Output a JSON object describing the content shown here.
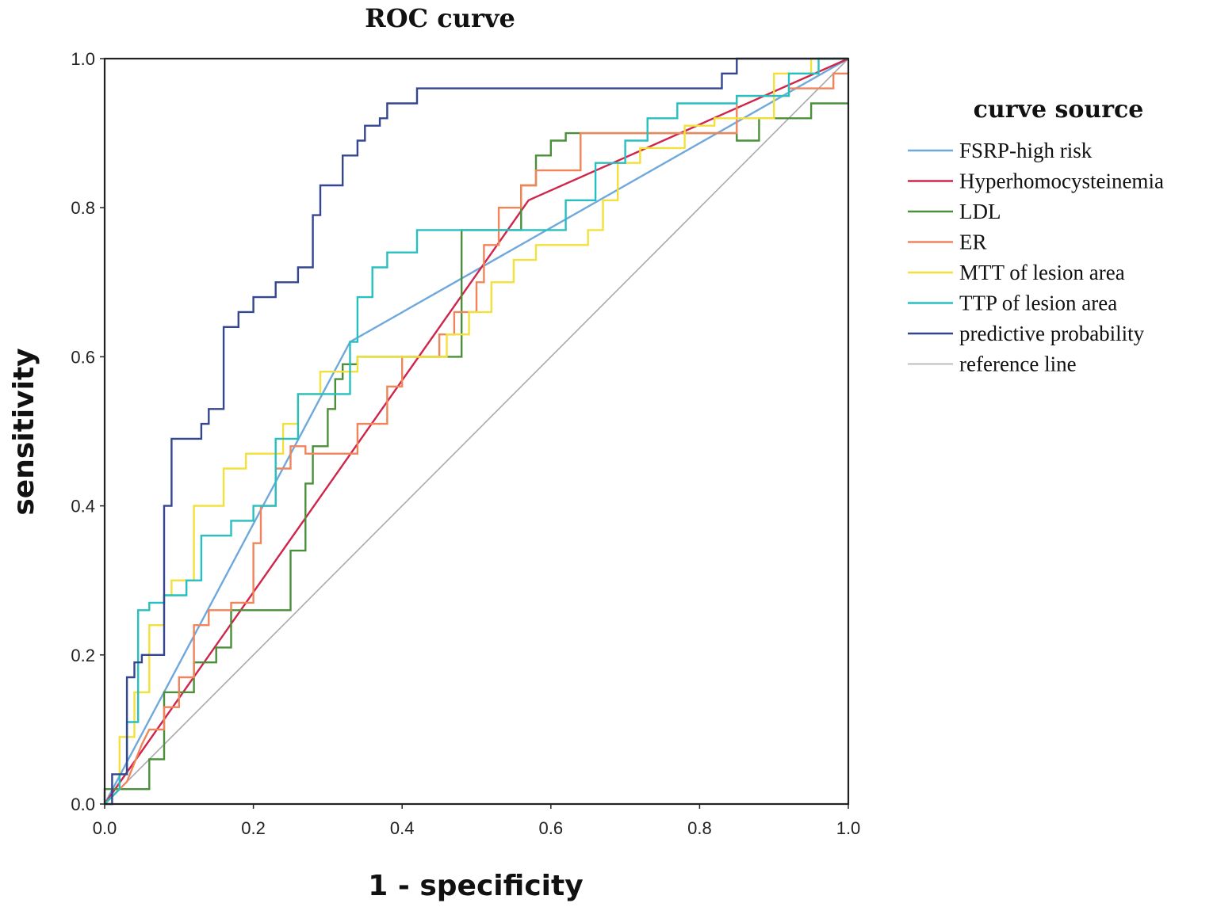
{
  "chart_data": {
    "type": "line",
    "title": "ROC curve",
    "xlabel": "1 - specificity",
    "ylabel": "sensitivity",
    "xlim": [
      0,
      1
    ],
    "ylim": [
      0,
      1
    ],
    "xticks": [
      "0.0",
      "0.2",
      "0.4",
      "0.6",
      "0.8",
      "1.0"
    ],
    "yticks": [
      "0.0",
      "0.2",
      "0.4",
      "0.6",
      "0.8",
      "1.0"
    ],
    "legend_title": "curve source",
    "legend_position": "right",
    "grid": false,
    "series": [
      {
        "name": "FSRP-high risk",
        "color": "#6fa8dc",
        "x": [
          0,
          0.33,
          1
        ],
        "y": [
          0,
          0.62,
          1
        ]
      },
      {
        "name": "Hyperhomocysteinemia",
        "color": "#d0254b",
        "x": [
          0,
          0.57,
          1
        ],
        "y": [
          0,
          0.81,
          1
        ]
      },
      {
        "name": "LDL",
        "color": "#4a8f3a",
        "x": [
          0,
          0,
          0.06,
          0.06,
          0.08,
          0.08,
          0.12,
          0.12,
          0.15,
          0.15,
          0.17,
          0.17,
          0.25,
          0.25,
          0.27,
          0.27,
          0.28,
          0.28,
          0.3,
          0.3,
          0.31,
          0.31,
          0.32,
          0.32,
          0.34,
          0.34,
          0.48,
          0.48,
          0.56,
          0.56,
          0.58,
          0.58,
          0.6,
          0.6,
          0.62,
          0.62,
          0.85,
          0.85,
          0.88,
          0.88,
          0.93,
          0.93,
          0.95,
          0.95,
          1.0
        ],
        "y": [
          0,
          0.02,
          0.02,
          0.06,
          0.06,
          0.15,
          0.15,
          0.19,
          0.19,
          0.21,
          0.21,
          0.26,
          0.26,
          0.34,
          0.34,
          0.43,
          0.43,
          0.48,
          0.48,
          0.53,
          0.53,
          0.57,
          0.57,
          0.59,
          0.59,
          0.6,
          0.6,
          0.77,
          0.77,
          0.83,
          0.83,
          0.87,
          0.87,
          0.89,
          0.89,
          0.9,
          0.9,
          0.89,
          0.89,
          0.92,
          0.92,
          0.92,
          0.92,
          0.94,
          0.94
        ]
      },
      {
        "name": "ER",
        "color": "#f0845a",
        "x": [
          0,
          0.03,
          0.05,
          0.06,
          0.08,
          0.08,
          0.1,
          0.1,
          0.12,
          0.12,
          0.14,
          0.14,
          0.17,
          0.17,
          0.2,
          0.2,
          0.21,
          0.21,
          0.23,
          0.23,
          0.25,
          0.25,
          0.27,
          0.27,
          0.34,
          0.34,
          0.38,
          0.38,
          0.4,
          0.4,
          0.45,
          0.45,
          0.47,
          0.47,
          0.5,
          0.5,
          0.51,
          0.51,
          0.53,
          0.53,
          0.56,
          0.56,
          0.58,
          0.58,
          0.64,
          0.64,
          0.7,
          0.7,
          0.85,
          0.85,
          0.92,
          0.92,
          0.98,
          0.98,
          1.0
        ],
        "y": [
          0,
          0.03,
          0.08,
          0.1,
          0.1,
          0.13,
          0.13,
          0.17,
          0.17,
          0.24,
          0.24,
          0.26,
          0.26,
          0.27,
          0.27,
          0.35,
          0.35,
          0.4,
          0.4,
          0.45,
          0.45,
          0.48,
          0.48,
          0.47,
          0.47,
          0.51,
          0.51,
          0.56,
          0.56,
          0.6,
          0.6,
          0.63,
          0.63,
          0.66,
          0.66,
          0.7,
          0.7,
          0.75,
          0.75,
          0.8,
          0.8,
          0.83,
          0.83,
          0.85,
          0.85,
          0.9,
          0.9,
          0.9,
          0.9,
          0.95,
          0.95,
          0.96,
          0.96,
          0.98,
          0.98
        ]
      },
      {
        "name": "MTT of lesion area",
        "color": "#f3e03a",
        "x": [
          0,
          0.02,
          0.02,
          0.04,
          0.04,
          0.06,
          0.06,
          0.08,
          0.08,
          0.09,
          0.09,
          0.12,
          0.12,
          0.16,
          0.16,
          0.19,
          0.19,
          0.24,
          0.24,
          0.26,
          0.26,
          0.29,
          0.29,
          0.34,
          0.34,
          0.46,
          0.46,
          0.49,
          0.49,
          0.52,
          0.52,
          0.55,
          0.55,
          0.58,
          0.58,
          0.65,
          0.65,
          0.67,
          0.67,
          0.69,
          0.69,
          0.72,
          0.72,
          0.78,
          0.78,
          0.82,
          0.82,
          0.9,
          0.9,
          0.95,
          0.95,
          1.0
        ],
        "y": [
          0,
          0.02,
          0.09,
          0.09,
          0.15,
          0.15,
          0.24,
          0.24,
          0.28,
          0.28,
          0.3,
          0.3,
          0.4,
          0.4,
          0.45,
          0.45,
          0.47,
          0.47,
          0.51,
          0.51,
          0.55,
          0.55,
          0.58,
          0.58,
          0.6,
          0.6,
          0.63,
          0.63,
          0.66,
          0.66,
          0.7,
          0.7,
          0.73,
          0.73,
          0.75,
          0.75,
          0.77,
          0.77,
          0.81,
          0.81,
          0.86,
          0.86,
          0.88,
          0.88,
          0.91,
          0.91,
          0.92,
          0.92,
          0.98,
          0.98,
          1.0,
          1.0
        ]
      },
      {
        "name": "TTP of lesion area",
        "color": "#27c0c0",
        "x": [
          0,
          0.02,
          0.02,
          0.03,
          0.03,
          0.045,
          0.045,
          0.06,
          0.06,
          0.08,
          0.08,
          0.11,
          0.11,
          0.13,
          0.13,
          0.17,
          0.17,
          0.2,
          0.2,
          0.23,
          0.23,
          0.26,
          0.26,
          0.33,
          0.33,
          0.34,
          0.34,
          0.36,
          0.36,
          0.38,
          0.38,
          0.42,
          0.42,
          0.44,
          0.44,
          0.62,
          0.62,
          0.66,
          0.66,
          0.7,
          0.7,
          0.73,
          0.73,
          0.77,
          0.77,
          0.85,
          0.85,
          0.92,
          0.92,
          0.96,
          0.96,
          1.0
        ],
        "y": [
          0,
          0.02,
          0.04,
          0.04,
          0.11,
          0.11,
          0.26,
          0.26,
          0.27,
          0.27,
          0.28,
          0.28,
          0.3,
          0.3,
          0.36,
          0.36,
          0.38,
          0.38,
          0.4,
          0.4,
          0.49,
          0.49,
          0.55,
          0.55,
          0.62,
          0.62,
          0.68,
          0.68,
          0.72,
          0.72,
          0.74,
          0.74,
          0.77,
          0.77,
          0.77,
          0.77,
          0.81,
          0.81,
          0.86,
          0.86,
          0.89,
          0.89,
          0.92,
          0.92,
          0.94,
          0.94,
          0.95,
          0.95,
          0.98,
          0.98,
          1.0,
          1.0
        ]
      },
      {
        "name": "predictive probability",
        "color": "#34468f",
        "x": [
          0,
          0.01,
          0.01,
          0.03,
          0.03,
          0.04,
          0.04,
          0.05,
          0.05,
          0.08,
          0.08,
          0.09,
          0.09,
          0.13,
          0.13,
          0.14,
          0.14,
          0.16,
          0.16,
          0.18,
          0.18,
          0.2,
          0.2,
          0.23,
          0.23,
          0.26,
          0.26,
          0.28,
          0.28,
          0.29,
          0.29,
          0.32,
          0.32,
          0.34,
          0.34,
          0.35,
          0.35,
          0.37,
          0.37,
          0.38,
          0.38,
          0.4,
          0.4,
          0.42,
          0.42,
          0.83,
          0.83,
          0.85,
          0.85,
          0.9,
          0.9,
          0.92,
          0.92,
          1.0
        ],
        "y": [
          0,
          0,
          0.04,
          0.04,
          0.17,
          0.17,
          0.19,
          0.19,
          0.2,
          0.2,
          0.4,
          0.4,
          0.49,
          0.49,
          0.51,
          0.51,
          0.53,
          0.53,
          0.64,
          0.64,
          0.66,
          0.66,
          0.68,
          0.68,
          0.7,
          0.7,
          0.72,
          0.72,
          0.79,
          0.79,
          0.83,
          0.83,
          0.87,
          0.87,
          0.89,
          0.89,
          0.91,
          0.91,
          0.92,
          0.92,
          0.94,
          0.94,
          0.94,
          0.94,
          0.96,
          0.96,
          0.98,
          0.98,
          1.0,
          1.0,
          1.0,
          1.0,
          1.0,
          1.0
        ]
      },
      {
        "name": "reference line",
        "color": "#aaaaaa",
        "x": [
          0,
          1
        ],
        "y": [
          0,
          1
        ]
      }
    ]
  }
}
